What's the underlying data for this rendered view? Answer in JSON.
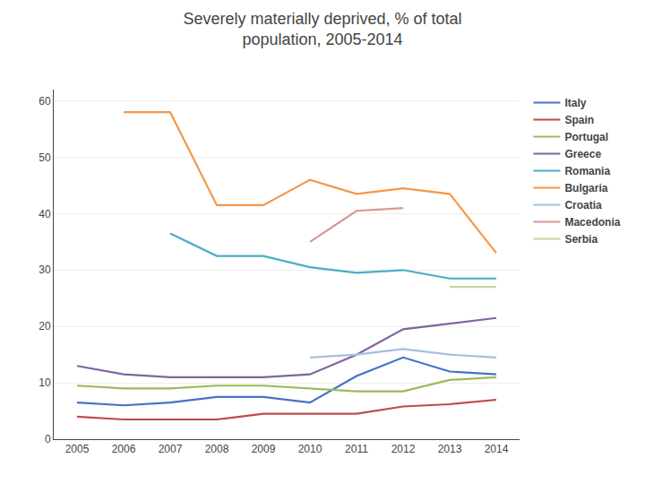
{
  "chart_data": {
    "type": "line",
    "title": "Severely materially deprived, % of total\npopulation, 2005-2014",
    "x": [
      2005,
      2006,
      2007,
      2008,
      2009,
      2010,
      2011,
      2012,
      2013,
      2014
    ],
    "series": [
      {
        "name": "Italy",
        "color": "#4472C4",
        "values": [
          6.5,
          6.0,
          6.5,
          7.5,
          7.5,
          6.5,
          11.2,
          14.5,
          12.0,
          11.5
        ]
      },
      {
        "name": "Spain",
        "color": "#BE4B48",
        "values": [
          4.0,
          3.5,
          3.5,
          3.5,
          4.5,
          4.5,
          4.5,
          5.8,
          6.2,
          7.0
        ]
      },
      {
        "name": "Portugal",
        "color": "#9BBB59",
        "values": [
          9.5,
          9.0,
          9.0,
          9.5,
          9.5,
          9.0,
          8.5,
          8.5,
          10.5,
          11.0
        ]
      },
      {
        "name": "Greece",
        "color": "#8064A2",
        "values": [
          13.0,
          11.5,
          11.0,
          11.0,
          11.0,
          11.5,
          15.0,
          19.5,
          20.5,
          21.5
        ]
      },
      {
        "name": "Romania",
        "color": "#4BACC6",
        "values": [
          null,
          null,
          36.5,
          32.5,
          32.5,
          30.5,
          29.5,
          30.0,
          28.5,
          28.5
        ]
      },
      {
        "name": "Bulgaria",
        "color": "#F79646",
        "values": [
          null,
          58.0,
          58.0,
          41.5,
          41.5,
          46.0,
          43.5,
          44.5,
          43.5,
          33.0
        ]
      },
      {
        "name": "Croatia",
        "color": "#A5BFDD",
        "values": [
          null,
          null,
          null,
          null,
          null,
          14.5,
          15.0,
          16.0,
          15.0,
          14.5
        ]
      },
      {
        "name": "Macedonia",
        "color": "#D99694",
        "values": [
          null,
          null,
          null,
          null,
          null,
          35.0,
          40.5,
          41.0,
          null,
          null
        ]
      },
      {
        "name": "Serbia",
        "color": "#C4D79B",
        "values": [
          null,
          null,
          null,
          null,
          null,
          null,
          null,
          null,
          27.0,
          27.0
        ]
      }
    ],
    "xlim": [
      2004.5,
      2014.5
    ],
    "xticks": [
      2005,
      2006,
      2007,
      2008,
      2009,
      2010,
      2011,
      2012,
      2013,
      2014
    ],
    "ylim": [
      0,
      62
    ],
    "yticks": [
      0,
      10,
      20,
      30,
      40,
      50,
      60
    ],
    "grid": "y",
    "legend": "upper right"
  }
}
